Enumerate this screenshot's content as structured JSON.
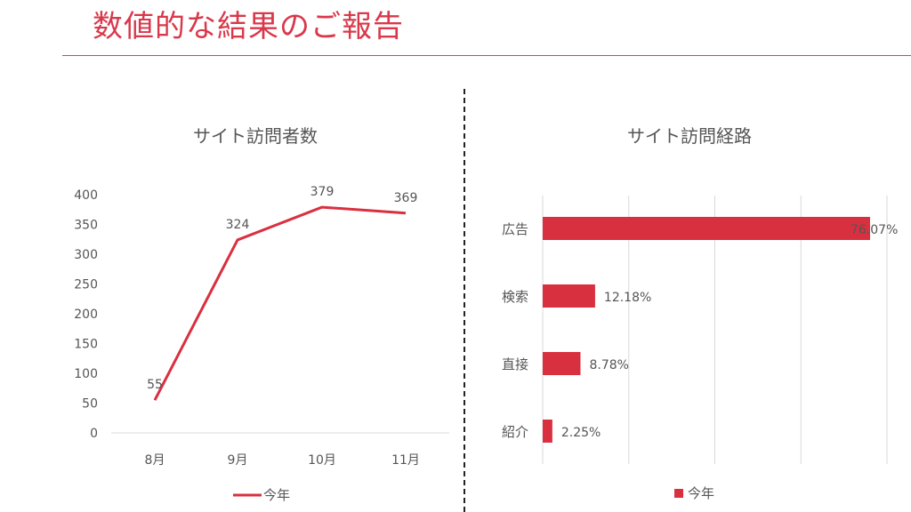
{
  "title": "数値的な結果のご報告",
  "chart_data": [
    {
      "type": "line",
      "title": "サイト訪問者数",
      "categories": [
        "8月",
        "9月",
        "10月",
        "11月"
      ],
      "series": [
        {
          "name": "今年",
          "values": [
            55,
            324,
            379,
            369
          ],
          "color": "#d9303f"
        }
      ],
      "ylim": [
        0,
        400
      ],
      "yticks": [
        0,
        50,
        100,
        150,
        200,
        250,
        300,
        350,
        400
      ],
      "legend": "bottom",
      "grid": false
    },
    {
      "type": "bar",
      "orientation": "horizontal",
      "title": "サイト訪問経路",
      "categories": [
        "広告",
        "検索",
        "直接",
        "紹介"
      ],
      "series": [
        {
          "name": "今年",
          "values": [
            76.07,
            12.18,
            8.78,
            2.25
          ],
          "color": "#d9303f"
        }
      ],
      "data_labels": [
        "76.07%",
        "12.18%",
        "8.78%",
        "2.25%"
      ],
      "xlim": [
        0,
        80
      ],
      "grid": true,
      "legend": "bottom"
    }
  ]
}
